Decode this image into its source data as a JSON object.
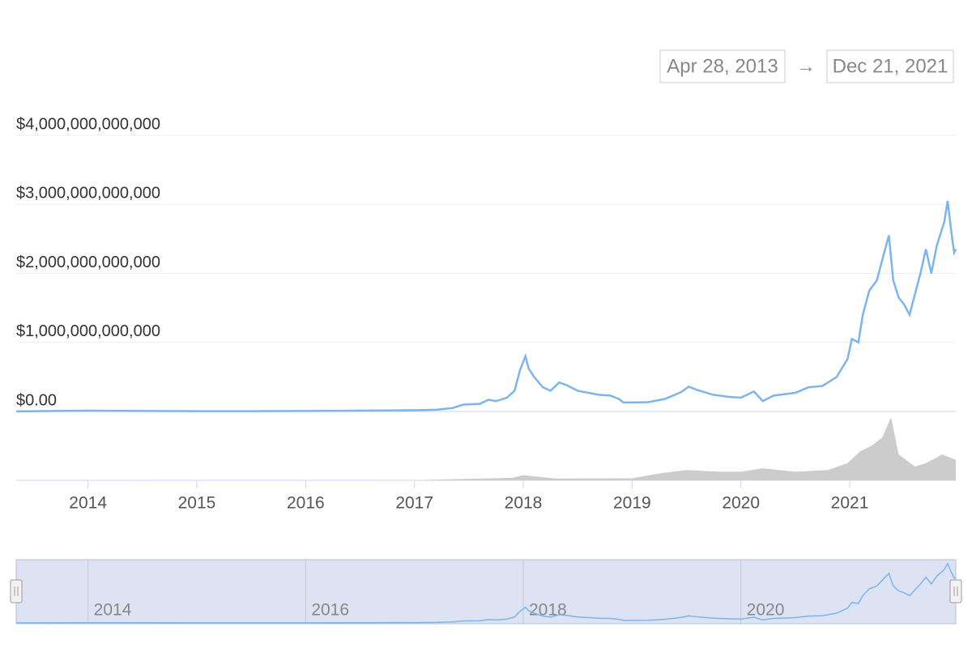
{
  "chart_data": {
    "type": "line",
    "range_start": "Apr 28, 2013",
    "range_separator": "→",
    "range_end": "Dec 21, 2021",
    "xlim": [
      2013.34,
      2021.975
    ],
    "xticks": [
      2014,
      2015,
      2016,
      2017,
      2018,
      2019,
      2020,
      2021
    ],
    "navigator_xticks": [
      2014,
      2016,
      2018,
      2020
    ],
    "ylim": [
      0,
      4000000000000
    ],
    "yticks": [
      {
        "value": 0,
        "label": "$0.00"
      },
      {
        "value": 1000000000000,
        "label": "$1,000,000,000,000"
      },
      {
        "value": 2000000000000,
        "label": "$2,000,000,000,000"
      },
      {
        "value": 3000000000000,
        "label": "$3,000,000,000,000"
      },
      {
        "value": 4000000000000,
        "label": "$4,000,000,000,000"
      }
    ],
    "y2lim": [
      0,
      400000000000
    ],
    "grid": true,
    "series": [
      {
        "color": "#7cb5ec",
        "x": [
          2013.34,
          2013.9,
          2014.0,
          2014.5,
          2015.0,
          2015.5,
          2016.0,
          2016.5,
          2017.0,
          2017.2,
          2017.35,
          2017.45,
          2017.6,
          2017.68,
          2017.75,
          2017.85,
          2017.92,
          2017.97,
          2018.02,
          2018.05,
          2018.1,
          2018.18,
          2018.25,
          2018.33,
          2018.4,
          2018.5,
          2018.6,
          2018.7,
          2018.8,
          2018.88,
          2018.92,
          2019.0,
          2019.15,
          2019.3,
          2019.45,
          2019.52,
          2019.6,
          2019.75,
          2019.9,
          2020.0,
          2020.12,
          2020.2,
          2020.3,
          2020.5,
          2020.62,
          2020.75,
          2020.88,
          2020.98,
          2021.02,
          2021.08,
          2021.12,
          2021.18,
          2021.25,
          2021.3,
          2021.36,
          2021.4,
          2021.45,
          2021.5,
          2021.55,
          2021.6,
          2021.65,
          2021.7,
          2021.75,
          2021.8,
          2021.87,
          2021.9,
          2021.93,
          2021.96,
          2021.975
        ],
        "values": [
          1500000000,
          10000000000,
          12000000000,
          8000000000,
          5000000000,
          4000000000,
          7000000000,
          12000000000,
          18000000000,
          25000000000,
          50000000000,
          100000000000,
          110000000000,
          170000000000,
          150000000000,
          200000000000,
          300000000000,
          600000000000,
          800000000000,
          620000000000,
          500000000000,
          350000000000,
          300000000000,
          420000000000,
          380000000000,
          300000000000,
          270000000000,
          240000000000,
          230000000000,
          180000000000,
          130000000000,
          130000000000,
          135000000000,
          180000000000,
          280000000000,
          360000000000,
          310000000000,
          240000000000,
          210000000000,
          200000000000,
          290000000000,
          150000000000,
          230000000000,
          270000000000,
          350000000000,
          370000000000,
          500000000000,
          760000000000,
          1050000000000,
          1000000000000,
          1400000000000,
          1750000000000,
          1900000000000,
          2200000000000,
          2550000000000,
          1900000000000,
          1650000000000,
          1550000000000,
          1400000000000,
          1700000000000,
          2000000000000,
          2350000000000,
          2000000000000,
          2400000000000,
          2750000000000,
          3050000000000,
          2650000000000,
          2300000000000,
          2350000000000
        ]
      },
      {
        "color": "#cccccc",
        "axis": "y2",
        "x": [
          2013.34,
          2017.0,
          2017.9,
          2018.0,
          2018.3,
          2019.0,
          2019.25,
          2019.5,
          2019.8,
          2020.0,
          2020.2,
          2020.5,
          2020.8,
          2020.98,
          2021.1,
          2021.2,
          2021.3,
          2021.38,
          2021.45,
          2021.6,
          2021.7,
          2021.85,
          2021.975
        ],
        "values": [
          0,
          1000000000,
          15000000000,
          30000000000,
          10000000000,
          12000000000,
          40000000000,
          60000000000,
          50000000000,
          50000000000,
          70000000000,
          50000000000,
          60000000000,
          100000000000,
          170000000000,
          200000000000,
          250000000000,
          367000000000,
          150000000000,
          80000000000,
          100000000000,
          150000000000,
          120000000000
        ]
      }
    ]
  }
}
